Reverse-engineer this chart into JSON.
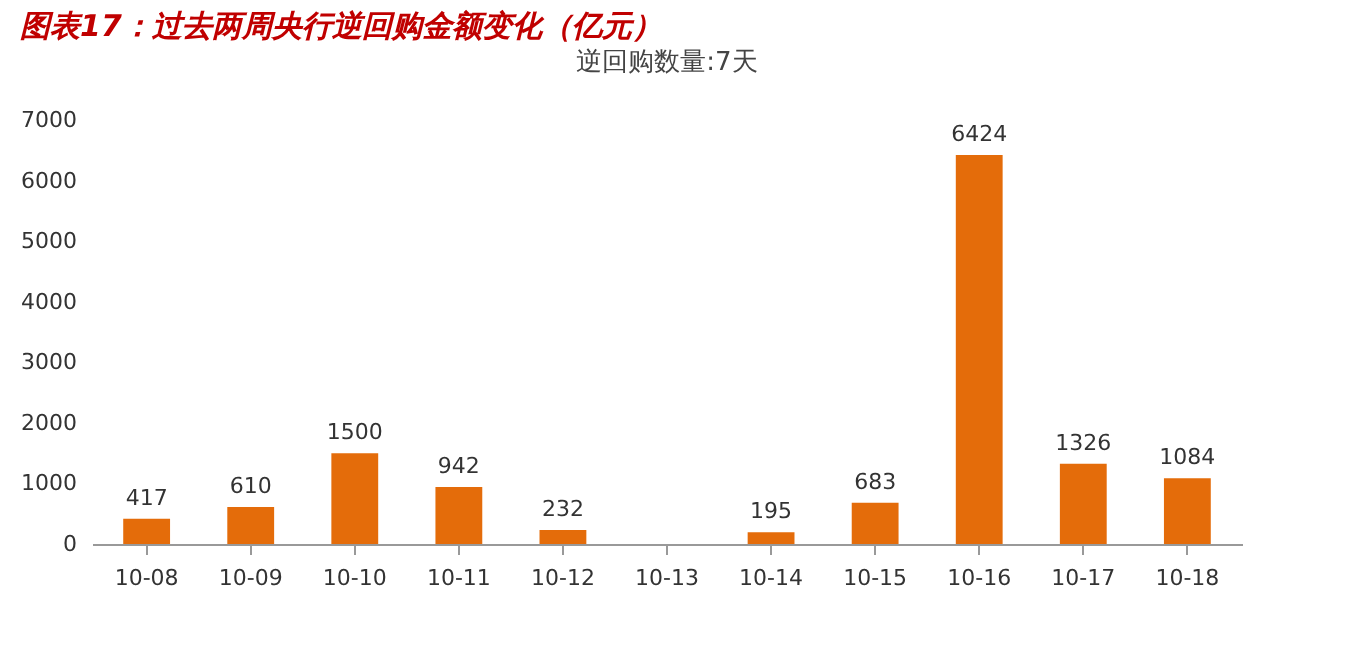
{
  "chart_data": {
    "type": "bar",
    "title": "图表17：过去两周央行逆回购金额变化（亿元）",
    "subtitle": "逆回购数量:7天",
    "categories": [
      "10-08",
      "10-09",
      "10-10",
      "10-11",
      "10-12",
      "10-13",
      "10-14",
      "10-15",
      "10-16",
      "10-17",
      "10-18"
    ],
    "values": [
      417,
      610,
      1500,
      942,
      232,
      null,
      195,
      683,
      6424,
      1326,
      1084
    ],
    "color": "#e46c0a",
    "ylim": [
      0,
      7000
    ],
    "yticks": [
      0,
      1000,
      2000,
      3000,
      4000,
      5000,
      6000,
      7000
    ],
    "grid": false,
    "data_labels": true
  }
}
